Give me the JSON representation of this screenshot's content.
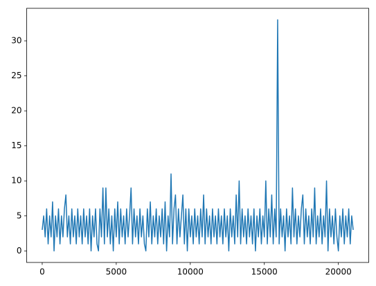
{
  "chart_data": {
    "type": "line",
    "color": "#1f77b4",
    "x": [
      0,
      100,
      200,
      300,
      400,
      500,
      600,
      700,
      800,
      900,
      1000,
      1100,
      1200,
      1300,
      1400,
      1500,
      1600,
      1700,
      1800,
      1900,
      2000,
      2100,
      2200,
      2300,
      2400,
      2500,
      2600,
      2700,
      2800,
      2900,
      3000,
      3100,
      3200,
      3300,
      3400,
      3500,
      3600,
      3700,
      3800,
      3900,
      4000,
      4100,
      4200,
      4300,
      4400,
      4500,
      4600,
      4700,
      4800,
      4900,
      5000,
      5100,
      5200,
      5300,
      5400,
      5500,
      5600,
      5700,
      5800,
      5900,
      6000,
      6100,
      6200,
      6300,
      6400,
      6500,
      6600,
      6700,
      6800,
      6900,
      7000,
      7100,
      7200,
      7300,
      7400,
      7500,
      7600,
      7700,
      7800,
      7900,
      8000,
      8100,
      8200,
      8300,
      8400,
      8500,
      8600,
      8700,
      8800,
      8900,
      9000,
      9100,
      9200,
      9300,
      9400,
      9500,
      9600,
      9700,
      9800,
      9900,
      10000,
      10100,
      10200,
      10300,
      10400,
      10500,
      10600,
      10700,
      10800,
      10900,
      11000,
      11100,
      11200,
      11300,
      11400,
      11500,
      11600,
      11700,
      11800,
      11900,
      12000,
      12100,
      12200,
      12300,
      12400,
      12500,
      12600,
      12700,
      12800,
      12900,
      13000,
      13100,
      13200,
      13300,
      13400,
      13500,
      13600,
      13700,
      13800,
      13900,
      14000,
      14100,
      14200,
      14300,
      14400,
      14500,
      14600,
      14700,
      14800,
      14900,
      15000,
      15100,
      15200,
      15300,
      15400,
      15500,
      15600,
      15700,
      15800,
      15900,
      16000,
      16100,
      16200,
      16300,
      16400,
      16500,
      16600,
      16700,
      16800,
      16900,
      17000,
      17100,
      17200,
      17300,
      17400,
      17500,
      17600,
      17700,
      17800,
      17900,
      18000,
      18100,
      18200,
      18300,
      18400,
      18500,
      18600,
      18700,
      18800,
      18900,
      19000,
      19100,
      19200,
      19300,
      19400,
      19500,
      19600,
      19700,
      19800,
      19900,
      20000,
      20100,
      20200,
      20300,
      20400,
      20500,
      20600,
      20700,
      20800,
      20900,
      21000
    ],
    "values": [
      3,
      5,
      2,
      6,
      1,
      5,
      2,
      7,
      0,
      5,
      2,
      6,
      1,
      5,
      2,
      6,
      8,
      2,
      5,
      1,
      6,
      2,
      5,
      1,
      6,
      2,
      5,
      1,
      6,
      2,
      5,
      1,
      6,
      0,
      5,
      2,
      6,
      1,
      0,
      6,
      2,
      9,
      1,
      9,
      2,
      6,
      1,
      5,
      0,
      6,
      2,
      7,
      1,
      6,
      2,
      5,
      1,
      6,
      2,
      5,
      9,
      1,
      6,
      2,
      5,
      1,
      6,
      2,
      5,
      1,
      0,
      6,
      2,
      7,
      1,
      5,
      2,
      6,
      1,
      5,
      2,
      6,
      1,
      7,
      0,
      5,
      2,
      11,
      1,
      6,
      8,
      1,
      6,
      2,
      5,
      8,
      1,
      6,
      0,
      6,
      2,
      5,
      1,
      6,
      2,
      5,
      1,
      6,
      2,
      8,
      1,
      6,
      2,
      5,
      1,
      6,
      2,
      5,
      1,
      6,
      2,
      5,
      1,
      6,
      2,
      5,
      0,
      6,
      2,
      5,
      1,
      8,
      2,
      10,
      1,
      6,
      2,
      5,
      1,
      6,
      2,
      5,
      1,
      6,
      0,
      5,
      2,
      6,
      1,
      5,
      2,
      10,
      1,
      6,
      2,
      8,
      1,
      6,
      2,
      33,
      1,
      6,
      2,
      5,
      0,
      6,
      2,
      5,
      1,
      9,
      2,
      6,
      1,
      5,
      2,
      6,
      8,
      1,
      6,
      2,
      5,
      1,
      6,
      2,
      9,
      1,
      5,
      2,
      6,
      1,
      5,
      2,
      10,
      0,
      6,
      2,
      5,
      1,
      6,
      2,
      0,
      5,
      2,
      6,
      1,
      5,
      2,
      6,
      1,
      5,
      3
    ],
    "xlim": [
      -1050,
      22050
    ],
    "ylim": [
      -1.65,
      34.65
    ],
    "xticks": [
      0,
      5000,
      10000,
      15000,
      20000
    ],
    "yticks": [
      0,
      5,
      10,
      15,
      20,
      25,
      30
    ]
  }
}
